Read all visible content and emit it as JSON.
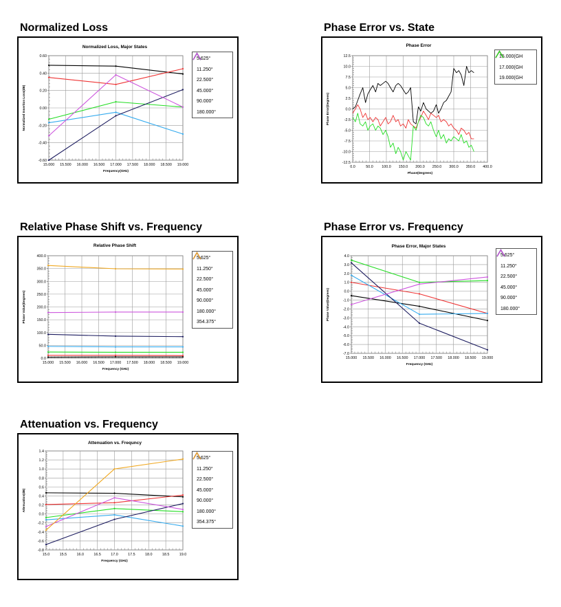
{
  "headings": {
    "normalized_loss": "Normalized Loss",
    "phase_error_state": "Phase Error vs. State",
    "relative_phase": "Relative Phase Shift vs. Frequency",
    "phase_error_freq": "Phase Error vs. Frequency",
    "attenuation": "Attenuation vs. Frequency"
  },
  "colors": {
    "5.625": "#000000",
    "11.250": "#ee3333",
    "22.500": "#22dd22",
    "45.000": "#33aaee",
    "90.000": "#1a1a5e",
    "180.000": "#cc55dd",
    "354.375": "#f0a820",
    "15.000GH": "#000000",
    "17.000GH": "#ee3333",
    "19.000GH": "#22dd22"
  },
  "chart_data": [
    {
      "id": "normalized_loss",
      "type": "line",
      "title": "Normalized Loss, Major States",
      "xlabel": "Frequency(GHz)",
      "ylabel": "Normalized Insertion Loss(dB)",
      "xlim": [
        15.0,
        19.0
      ],
      "ylim": [
        -0.6,
        0.6
      ],
      "xticks": [
        "15.000",
        "15.500",
        "16.000",
        "16.500",
        "17.000",
        "17.500",
        "18.000",
        "18.500",
        "19.000"
      ],
      "yticks": [
        "0.60",
        "0.40",
        "0.20",
        "0.00",
        "-0.20",
        "-0.40",
        "-0.60"
      ],
      "grid": true,
      "legend_position": "right",
      "series": [
        {
          "name": "5.625°",
          "key": "5.625",
          "x": [
            15.0,
            17.0,
            19.0
          ],
          "y": [
            0.49,
            0.48,
            0.39
          ]
        },
        {
          "name": "11.250°",
          "key": "11.250",
          "x": [
            15.0,
            17.0,
            19.0
          ],
          "y": [
            0.35,
            0.27,
            0.45
          ]
        },
        {
          "name": "22.500°",
          "key": "22.500",
          "x": [
            15.0,
            17.0,
            19.0
          ],
          "y": [
            -0.13,
            0.07,
            0.01
          ]
        },
        {
          "name": "45.000°",
          "key": "45.000",
          "x": [
            15.0,
            17.0,
            19.0
          ],
          "y": [
            -0.17,
            -0.05,
            -0.3
          ]
        },
        {
          "name": "90.000°",
          "key": "90.000",
          "x": [
            15.0,
            17.0,
            19.0
          ],
          "y": [
            -0.6,
            -0.09,
            0.21
          ]
        },
        {
          "name": "180.000°",
          "key": "180.000",
          "x": [
            15.0,
            17.0,
            19.0
          ],
          "y": [
            -0.32,
            0.38,
            0.01
          ]
        }
      ]
    },
    {
      "id": "phase_error_state",
      "type": "line",
      "title": "Phase Error",
      "xlabel": "Phase(Degrees)",
      "ylabel": "Phase Error(Degrees)",
      "xlim": [
        0,
        400
      ],
      "ylim": [
        -12.5,
        12.5
      ],
      "xticks": [
        "0.0",
        "50.0",
        "100.0",
        "150.0",
        "200.0",
        "250.0",
        "300.0",
        "350.0",
        "400.0"
      ],
      "yticks": [
        "12.5",
        "10.0",
        "7.5",
        "5.0",
        "2.5",
        "0.0",
        "-2.5",
        "-5.0",
        "-7.5",
        "-10.0",
        "-12.5"
      ],
      "grid": true,
      "legend_position": "right",
      "series": [
        {
          "name": "15.000(GH",
          "key": "15.000GH",
          "x": [
            0,
            8,
            15,
            22,
            30,
            38,
            45,
            52,
            60,
            68,
            75,
            82,
            90,
            98,
            105,
            112,
            120,
            128,
            135,
            142,
            150,
            158,
            165,
            172,
            180,
            188,
            195,
            202,
            210,
            218,
            225,
            232,
            240,
            248,
            255,
            262,
            270,
            278,
            285,
            292,
            300,
            308,
            315,
            322,
            330,
            338,
            345,
            352,
            360
          ],
          "y": [
            0,
            0.5,
            2,
            3.5,
            5,
            1.5,
            3.5,
            4.5,
            5.5,
            4,
            6,
            5.5,
            6,
            6.5,
            6,
            5,
            4,
            5.5,
            6,
            5.5,
            4.5,
            3.5,
            4,
            5,
            -3,
            -3.5,
            0.5,
            -0.5,
            1.5,
            0,
            -0.5,
            -1,
            -0.5,
            1,
            -1,
            0,
            1.5,
            2,
            3,
            4,
            9.5,
            8.5,
            9,
            8,
            5.5,
            10,
            8.5,
            9,
            8.5
          ]
        },
        {
          "name": "17.000(GH",
          "key": "17.000GH",
          "x": [
            0,
            8,
            15,
            22,
            30,
            38,
            45,
            52,
            60,
            68,
            75,
            82,
            90,
            98,
            105,
            112,
            120,
            128,
            135,
            142,
            150,
            158,
            165,
            172,
            180,
            188,
            195,
            202,
            210,
            218,
            225,
            232,
            240,
            248,
            255,
            262,
            270,
            278,
            285,
            292,
            300,
            308,
            315,
            322,
            330,
            338,
            345,
            352,
            360
          ],
          "y": [
            -1,
            0,
            1,
            0,
            -2,
            -1,
            -2.5,
            -2,
            -3,
            -2,
            -2.5,
            -4,
            -3,
            -2,
            -3.5,
            -3,
            -1.5,
            -3,
            -2.5,
            -4,
            -3.5,
            -4.5,
            -2.5,
            -3.5,
            -4,
            -4.5,
            -3,
            -2,
            -0.5,
            -1.5,
            -2.5,
            -1,
            -1.5,
            -2,
            -1.5,
            -3,
            -2.5,
            -3,
            -4,
            -3.5,
            -4.5,
            -5,
            -6,
            -4.5,
            -5,
            -6,
            -5.5,
            -7,
            -7
          ]
        },
        {
          "name": "19.000(GH",
          "key": "19.000GH",
          "x": [
            0,
            8,
            15,
            22,
            30,
            38,
            45,
            52,
            60,
            68,
            75,
            82,
            90,
            98,
            105,
            112,
            120,
            128,
            135,
            142,
            150,
            158,
            165,
            172,
            180,
            188,
            195,
            202,
            210,
            218,
            225,
            232,
            240,
            248,
            255,
            262,
            270,
            278,
            285,
            292,
            300,
            308,
            315,
            322,
            330,
            338,
            345,
            352,
            360
          ],
          "y": [
            -2,
            -3,
            -1,
            -3.5,
            -4,
            -3,
            -5,
            -4,
            -3.5,
            -5,
            -4,
            -4.5,
            -6,
            -5,
            -6.5,
            -9,
            -8,
            -10.5,
            -9,
            -10,
            -12,
            -10,
            -11,
            -12,
            -4,
            -5,
            -3,
            -1.5,
            -2,
            -3.5,
            -4,
            -3,
            -5,
            -6.5,
            -5,
            -7,
            -6,
            -8,
            -7,
            -7.5,
            -6.5,
            -7,
            -7.5,
            -6,
            -8,
            -7.5,
            -9,
            -8.5,
            -10
          ]
        }
      ]
    },
    {
      "id": "relative_phase",
      "type": "line",
      "title": "Relative Phase Shift",
      "xlabel": "Frequency (GHz)",
      "ylabel": "Phase Value(Degrees)",
      "xlim": [
        15.0,
        19.0
      ],
      "ylim": [
        0,
        400
      ],
      "xticks": [
        "15.000",
        "15.500",
        "16.000",
        "16.500",
        "17.000",
        "17.500",
        "18.000",
        "18.500",
        "19.000"
      ],
      "yticks": [
        "400.0",
        "350.0",
        "300.0",
        "250.0",
        "200.0",
        "150.0",
        "100.0",
        "50.0",
        "0.0"
      ],
      "grid": true,
      "legend_position": "right",
      "series": [
        {
          "name": "5.625°",
          "key": "5.625",
          "x": [
            15.0,
            17.0,
            19.0
          ],
          "y": [
            4,
            5,
            5
          ]
        },
        {
          "name": "11.250°",
          "key": "11.250",
          "x": [
            15.0,
            17.0,
            19.0
          ],
          "y": [
            11,
            11,
            10
          ]
        },
        {
          "name": "22.500°",
          "key": "22.500",
          "x": [
            15.0,
            17.0,
            19.0
          ],
          "y": [
            24,
            23,
            23
          ]
        },
        {
          "name": "45.000°",
          "key": "45.000",
          "x": [
            15.0,
            17.0,
            19.0
          ],
          "y": [
            46,
            44,
            44
          ]
        },
        {
          "name": "90.000°",
          "key": "90.000",
          "x": [
            15.0,
            17.0,
            19.0
          ],
          "y": [
            93,
            86,
            84
          ]
        },
        {
          "name": "180.000°",
          "key": "180.000",
          "x": [
            15.0,
            17.0,
            19.0
          ],
          "y": [
            178,
            180,
            180
          ]
        },
        {
          "name": "354.375°",
          "key": "354.375",
          "x": [
            15.0,
            17.0,
            19.0
          ],
          "y": [
            362,
            349,
            348
          ]
        }
      ]
    },
    {
      "id": "phase_error_freq",
      "type": "line",
      "title": "Phase Error, Major States",
      "xlabel": "Frequency (GHz)",
      "ylabel": "Phase Value(Degrees)",
      "xlim": [
        15.0,
        19.0
      ],
      "ylim": [
        -7.0,
        4.0
      ],
      "xticks": [
        "15.000",
        "15.500",
        "16.000",
        "16.500",
        "17.000",
        "17.500",
        "18.000",
        "18.500",
        "19.000"
      ],
      "yticks": [
        "4.0",
        "3.0",
        "2.0",
        "1.0",
        "0.0",
        "-1.0",
        "-2.0",
        "-3.0",
        "-4.0",
        "-5.0",
        "-6.0",
        "-7.0"
      ],
      "grid": true,
      "legend_position": "right",
      "series": [
        {
          "name": "5.625°",
          "key": "5.625",
          "x": [
            15.0,
            17.0,
            19.0
          ],
          "y": [
            -0.5,
            -1.7,
            -3.3
          ]
        },
        {
          "name": "11.250°",
          "key": "11.250",
          "x": [
            15.0,
            17.0,
            19.0
          ],
          "y": [
            1.0,
            -0.3,
            -2.5
          ]
        },
        {
          "name": "22.500°",
          "key": "22.500",
          "x": [
            15.0,
            17.0,
            19.0
          ],
          "y": [
            3.5,
            1.0,
            1.2
          ]
        },
        {
          "name": "45.000°",
          "key": "45.000",
          "x": [
            15.0,
            17.0,
            19.0
          ],
          "y": [
            1.8,
            -2.6,
            -2.5
          ]
        },
        {
          "name": "90.000°",
          "key": "90.000",
          "x": [
            15.0,
            17.0,
            19.0
          ],
          "y": [
            3.2,
            -3.6,
            -6.6
          ]
        },
        {
          "name": "180.000°",
          "key": "180.000",
          "x": [
            15.0,
            17.0,
            19.0
          ],
          "y": [
            -1.5,
            0.8,
            1.6
          ]
        }
      ]
    },
    {
      "id": "attenuation",
      "type": "line",
      "title": "Attenuation vs. Frequncy",
      "xlabel": "Frequency (GHz)",
      "ylabel": "Attenuation(dB)",
      "xlim": [
        15.0,
        19.0
      ],
      "ylim": [
        -0.8,
        1.4
      ],
      "xticks": [
        "15.0",
        "15.5",
        "16.0",
        "16.5",
        "17.0",
        "17.5",
        "18.0",
        "18.5",
        "19.0"
      ],
      "yticks": [
        "1.4",
        "1.2",
        "1.0",
        "0.8",
        "0.6",
        "0.4",
        "0.2",
        "0.0",
        "-0.2",
        "-0.4",
        "-0.6",
        "-0.8"
      ],
      "grid": true,
      "legend_position": "right",
      "series": [
        {
          "name": "5.625°",
          "key": "5.625",
          "x": [
            15.0,
            17.0,
            19.0
          ],
          "y": [
            0.47,
            0.46,
            0.38
          ]
        },
        {
          "name": "11.250°",
          "key": "11.250",
          "x": [
            15.0,
            17.0,
            19.0
          ],
          "y": [
            0.21,
            0.25,
            0.42
          ]
        },
        {
          "name": "22.500°",
          "key": "22.500",
          "x": [
            15.0,
            17.0,
            19.0
          ],
          "y": [
            -0.08,
            0.12,
            0.05
          ]
        },
        {
          "name": "45.000°",
          "key": "45.000",
          "x": [
            15.0,
            17.0,
            19.0
          ],
          "y": [
            -0.13,
            -0.02,
            -0.27
          ]
        },
        {
          "name": "90.000°",
          "key": "90.000",
          "x": [
            15.0,
            17.0,
            19.0
          ],
          "y": [
            -0.68,
            -0.12,
            0.23
          ]
        },
        {
          "name": "180.000°",
          "key": "180.000",
          "x": [
            15.0,
            17.0,
            19.0
          ],
          "y": [
            -0.28,
            0.36,
            0.1
          ]
        },
        {
          "name": "354.375°",
          "key": "354.375",
          "x": [
            15.0,
            17.0,
            19.0
          ],
          "y": [
            -0.36,
            1.0,
            1.22
          ]
        }
      ]
    }
  ]
}
